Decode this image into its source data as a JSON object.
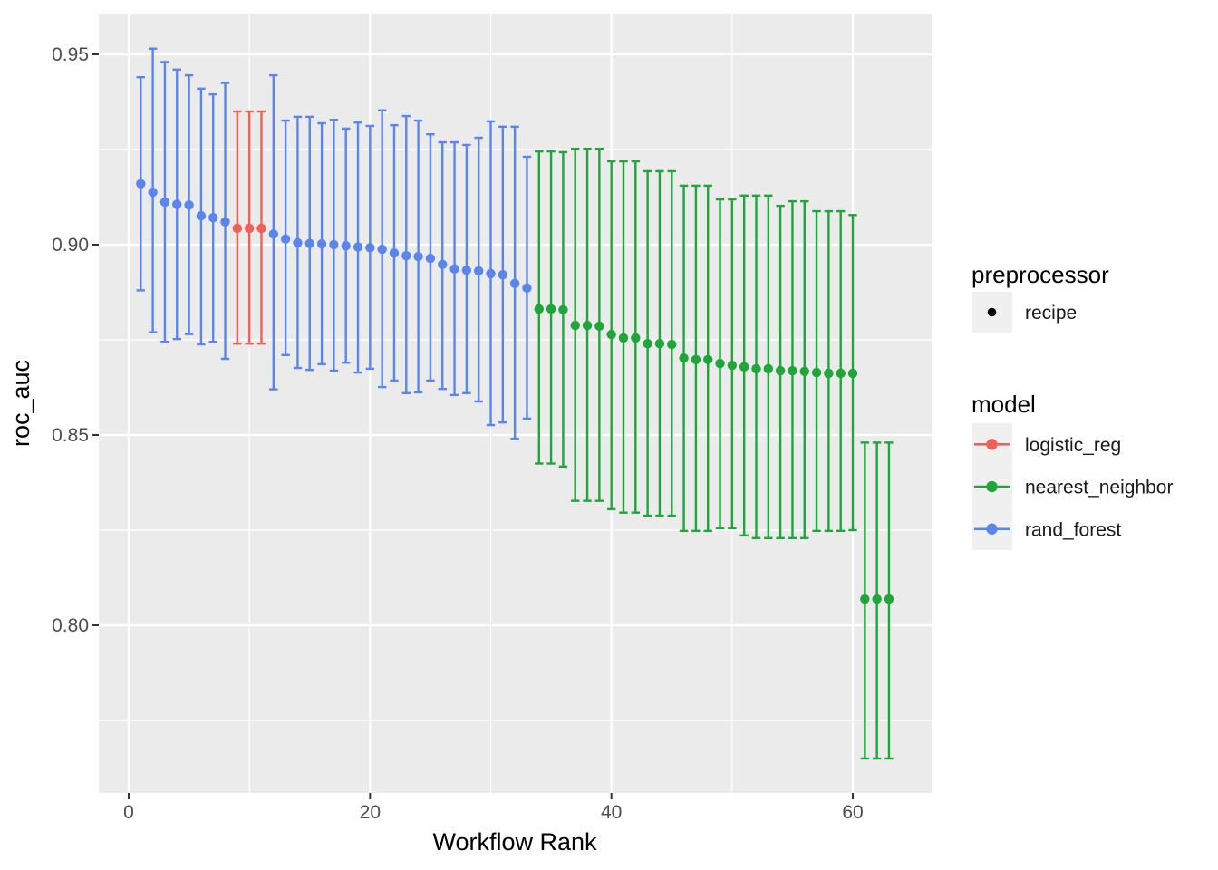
{
  "figure": {
    "colors": {
      "logistic_reg": "#EE6158",
      "nearest_neighbor": "#1EA63A",
      "rand_forest": "#5A86EC",
      "recipe_point": "#000000",
      "panel_background": "#EBEBEB",
      "grid": "#FFFFFF",
      "tick_mark": "#333333",
      "legend_key_bg": "#F0F0F0"
    }
  },
  "axes": {
    "x": {
      "title": "Workflow Rank",
      "ticks": [
        0,
        20,
        40,
        60
      ],
      "minor": [
        10,
        30,
        50
      ],
      "range": [
        -2.5,
        66.5
      ]
    },
    "y": {
      "title": "roc_auc",
      "ticks": [
        0.95,
        0.9,
        0.85,
        0.8
      ],
      "tick_labels": [
        "0.95",
        "0.90",
        "0.85",
        "0.80"
      ],
      "minor": [
        0.925,
        0.875,
        0.825,
        0.775
      ],
      "range": [
        0.756,
        0.961
      ]
    }
  },
  "legend": {
    "position": "right",
    "preprocessor": {
      "title": "preprocessor",
      "items": [
        {
          "label": "recipe",
          "marker": "point",
          "color": "#000000"
        }
      ]
    },
    "model": {
      "title": "model",
      "items": [
        {
          "label": "logistic_reg",
          "color_key": "logistic_reg"
        },
        {
          "label": "nearest_neighbor",
          "color_key": "nearest_neighbor"
        },
        {
          "label": "rand_forest",
          "color_key": "rand_forest"
        }
      ]
    }
  },
  "chart_data": {
    "type": "scatter",
    "title": "",
    "xlabel": "Workflow Rank",
    "ylabel": "roc_auc",
    "xlim": [
      -2.5,
      66.5
    ],
    "ylim": [
      0.756,
      0.961
    ],
    "grid": true,
    "legend_position": "right",
    "marker": "point-with-errorbar",
    "points": [
      {
        "rank": 1,
        "model": "rand_forest",
        "mean": 0.916,
        "lower": 0.888,
        "upper": 0.944
      },
      {
        "rank": 2,
        "model": "rand_forest",
        "mean": 0.9138,
        "lower": 0.877,
        "upper": 0.9515
      },
      {
        "rank": 3,
        "model": "rand_forest",
        "mean": 0.9112,
        "lower": 0.8745,
        "upper": 0.948
      },
      {
        "rank": 4,
        "model": "rand_forest",
        "mean": 0.9106,
        "lower": 0.8752,
        "upper": 0.946
      },
      {
        "rank": 5,
        "model": "rand_forest",
        "mean": 0.9104,
        "lower": 0.8765,
        "upper": 0.9445
      },
      {
        "rank": 6,
        "model": "rand_forest",
        "mean": 0.9076,
        "lower": 0.8738,
        "upper": 0.941
      },
      {
        "rank": 7,
        "model": "rand_forest",
        "mean": 0.9071,
        "lower": 0.8745,
        "upper": 0.9395
      },
      {
        "rank": 8,
        "model": "rand_forest",
        "mean": 0.906,
        "lower": 0.87,
        "upper": 0.9425
      },
      {
        "rank": 9,
        "model": "logistic_reg",
        "mean": 0.9043,
        "lower": 0.874,
        "upper": 0.935
      },
      {
        "rank": 10,
        "model": "logistic_reg",
        "mean": 0.9043,
        "lower": 0.874,
        "upper": 0.935
      },
      {
        "rank": 11,
        "model": "logistic_reg",
        "mean": 0.9043,
        "lower": 0.874,
        "upper": 0.935
      },
      {
        "rank": 12,
        "model": "rand_forest",
        "mean": 0.9028,
        "lower": 0.862,
        "upper": 0.9445
      },
      {
        "rank": 13,
        "model": "rand_forest",
        "mean": 0.9015,
        "lower": 0.871,
        "upper": 0.9326
      },
      {
        "rank": 14,
        "model": "rand_forest",
        "mean": 0.9005,
        "lower": 0.8676,
        "upper": 0.9336
      },
      {
        "rank": 15,
        "model": "rand_forest",
        "mean": 0.9003,
        "lower": 0.8671,
        "upper": 0.9336
      },
      {
        "rank": 16,
        "model": "rand_forest",
        "mean": 0.9002,
        "lower": 0.8686,
        "upper": 0.9319
      },
      {
        "rank": 17,
        "model": "rand_forest",
        "mean": 0.9,
        "lower": 0.8669,
        "upper": 0.9328
      },
      {
        "rank": 18,
        "model": "rand_forest",
        "mean": 0.8997,
        "lower": 0.869,
        "upper": 0.9305
      },
      {
        "rank": 19,
        "model": "rand_forest",
        "mean": 0.8994,
        "lower": 0.8664,
        "upper": 0.9321
      },
      {
        "rank": 20,
        "model": "rand_forest",
        "mean": 0.8992,
        "lower": 0.8674,
        "upper": 0.9312
      },
      {
        "rank": 21,
        "model": "rand_forest",
        "mean": 0.8988,
        "lower": 0.8626,
        "upper": 0.9353
      },
      {
        "rank": 22,
        "model": "rand_forest",
        "mean": 0.8978,
        "lower": 0.8643,
        "upper": 0.9314
      },
      {
        "rank": 23,
        "model": "rand_forest",
        "mean": 0.8971,
        "lower": 0.861,
        "upper": 0.9338
      },
      {
        "rank": 24,
        "model": "rand_forest",
        "mean": 0.8969,
        "lower": 0.8612,
        "upper": 0.9326
      },
      {
        "rank": 25,
        "model": "rand_forest",
        "mean": 0.8964,
        "lower": 0.8643,
        "upper": 0.929
      },
      {
        "rank": 26,
        "model": "rand_forest",
        "mean": 0.8948,
        "lower": 0.8621,
        "upper": 0.9269
      },
      {
        "rank": 27,
        "model": "rand_forest",
        "mean": 0.8936,
        "lower": 0.8605,
        "upper": 0.9269
      },
      {
        "rank": 28,
        "model": "rand_forest",
        "mean": 0.8933,
        "lower": 0.861,
        "upper": 0.9262
      },
      {
        "rank": 29,
        "model": "rand_forest",
        "mean": 0.8931,
        "lower": 0.8588,
        "upper": 0.9281
      },
      {
        "rank": 30,
        "model": "rand_forest",
        "mean": 0.8924,
        "lower": 0.8526,
        "upper": 0.9324
      },
      {
        "rank": 31,
        "model": "rand_forest",
        "mean": 0.8921,
        "lower": 0.8533,
        "upper": 0.931
      },
      {
        "rank": 32,
        "model": "rand_forest",
        "mean": 0.8898,
        "lower": 0.849,
        "upper": 0.931
      },
      {
        "rank": 33,
        "model": "rand_forest",
        "mean": 0.8886,
        "lower": 0.8543,
        "upper": 0.9231
      },
      {
        "rank": 34,
        "model": "nearest_neighbor",
        "mean": 0.8831,
        "lower": 0.8425,
        "upper": 0.9245
      },
      {
        "rank": 35,
        "model": "nearest_neighbor",
        "mean": 0.8831,
        "lower": 0.8425,
        "upper": 0.9245
      },
      {
        "rank": 36,
        "model": "nearest_neighbor",
        "mean": 0.8829,
        "lower": 0.8417,
        "upper": 0.9243
      },
      {
        "rank": 37,
        "model": "nearest_neighbor",
        "mean": 0.8788,
        "lower": 0.8327,
        "upper": 0.9252
      },
      {
        "rank": 38,
        "model": "nearest_neighbor",
        "mean": 0.8788,
        "lower": 0.8327,
        "upper": 0.9252
      },
      {
        "rank": 39,
        "model": "nearest_neighbor",
        "mean": 0.8786,
        "lower": 0.8327,
        "upper": 0.9252
      },
      {
        "rank": 40,
        "model": "nearest_neighbor",
        "mean": 0.8764,
        "lower": 0.8305,
        "upper": 0.9219
      },
      {
        "rank": 41,
        "model": "nearest_neighbor",
        "mean": 0.8755,
        "lower": 0.8296,
        "upper": 0.9219
      },
      {
        "rank": 42,
        "model": "nearest_neighbor",
        "mean": 0.8755,
        "lower": 0.8296,
        "upper": 0.9219
      },
      {
        "rank": 43,
        "model": "nearest_neighbor",
        "mean": 0.874,
        "lower": 0.8288,
        "upper": 0.9193
      },
      {
        "rank": 44,
        "model": "nearest_neighbor",
        "mean": 0.874,
        "lower": 0.8288,
        "upper": 0.9193
      },
      {
        "rank": 45,
        "model": "nearest_neighbor",
        "mean": 0.8738,
        "lower": 0.8288,
        "upper": 0.9193
      },
      {
        "rank": 46,
        "model": "nearest_neighbor",
        "mean": 0.8702,
        "lower": 0.8248,
        "upper": 0.9155
      },
      {
        "rank": 47,
        "model": "nearest_neighbor",
        "mean": 0.8698,
        "lower": 0.8248,
        "upper": 0.9155
      },
      {
        "rank": 48,
        "model": "nearest_neighbor",
        "mean": 0.8698,
        "lower": 0.8248,
        "upper": 0.9155
      },
      {
        "rank": 49,
        "model": "nearest_neighbor",
        "mean": 0.8688,
        "lower": 0.8255,
        "upper": 0.9119
      },
      {
        "rank": 50,
        "model": "nearest_neighbor",
        "mean": 0.8683,
        "lower": 0.8255,
        "upper": 0.9119
      },
      {
        "rank": 51,
        "model": "nearest_neighbor",
        "mean": 0.8679,
        "lower": 0.8236,
        "upper": 0.9129
      },
      {
        "rank": 52,
        "model": "nearest_neighbor",
        "mean": 0.8674,
        "lower": 0.8229,
        "upper": 0.9129
      },
      {
        "rank": 53,
        "model": "nearest_neighbor",
        "mean": 0.8674,
        "lower": 0.8229,
        "upper": 0.9129
      },
      {
        "rank": 54,
        "model": "nearest_neighbor",
        "mean": 0.8669,
        "lower": 0.8229,
        "upper": 0.9102
      },
      {
        "rank": 55,
        "model": "nearest_neighbor",
        "mean": 0.8669,
        "lower": 0.8229,
        "upper": 0.9114
      },
      {
        "rank": 56,
        "model": "nearest_neighbor",
        "mean": 0.8667,
        "lower": 0.8229,
        "upper": 0.9114
      },
      {
        "rank": 57,
        "model": "nearest_neighbor",
        "mean": 0.8664,
        "lower": 0.8248,
        "upper": 0.9088
      },
      {
        "rank": 58,
        "model": "nearest_neighbor",
        "mean": 0.8662,
        "lower": 0.8248,
        "upper": 0.9088
      },
      {
        "rank": 59,
        "model": "nearest_neighbor",
        "mean": 0.8662,
        "lower": 0.8248,
        "upper": 0.9088
      },
      {
        "rank": 60,
        "model": "nearest_neighbor",
        "mean": 0.8662,
        "lower": 0.825,
        "upper": 0.9078
      },
      {
        "rank": 61,
        "model": "nearest_neighbor",
        "mean": 0.8069,
        "lower": 0.765,
        "upper": 0.848
      },
      {
        "rank": 62,
        "model": "nearest_neighbor",
        "mean": 0.8069,
        "lower": 0.765,
        "upper": 0.848
      },
      {
        "rank": 63,
        "model": "nearest_neighbor",
        "mean": 0.8069,
        "lower": 0.765,
        "upper": 0.848
      }
    ]
  }
}
